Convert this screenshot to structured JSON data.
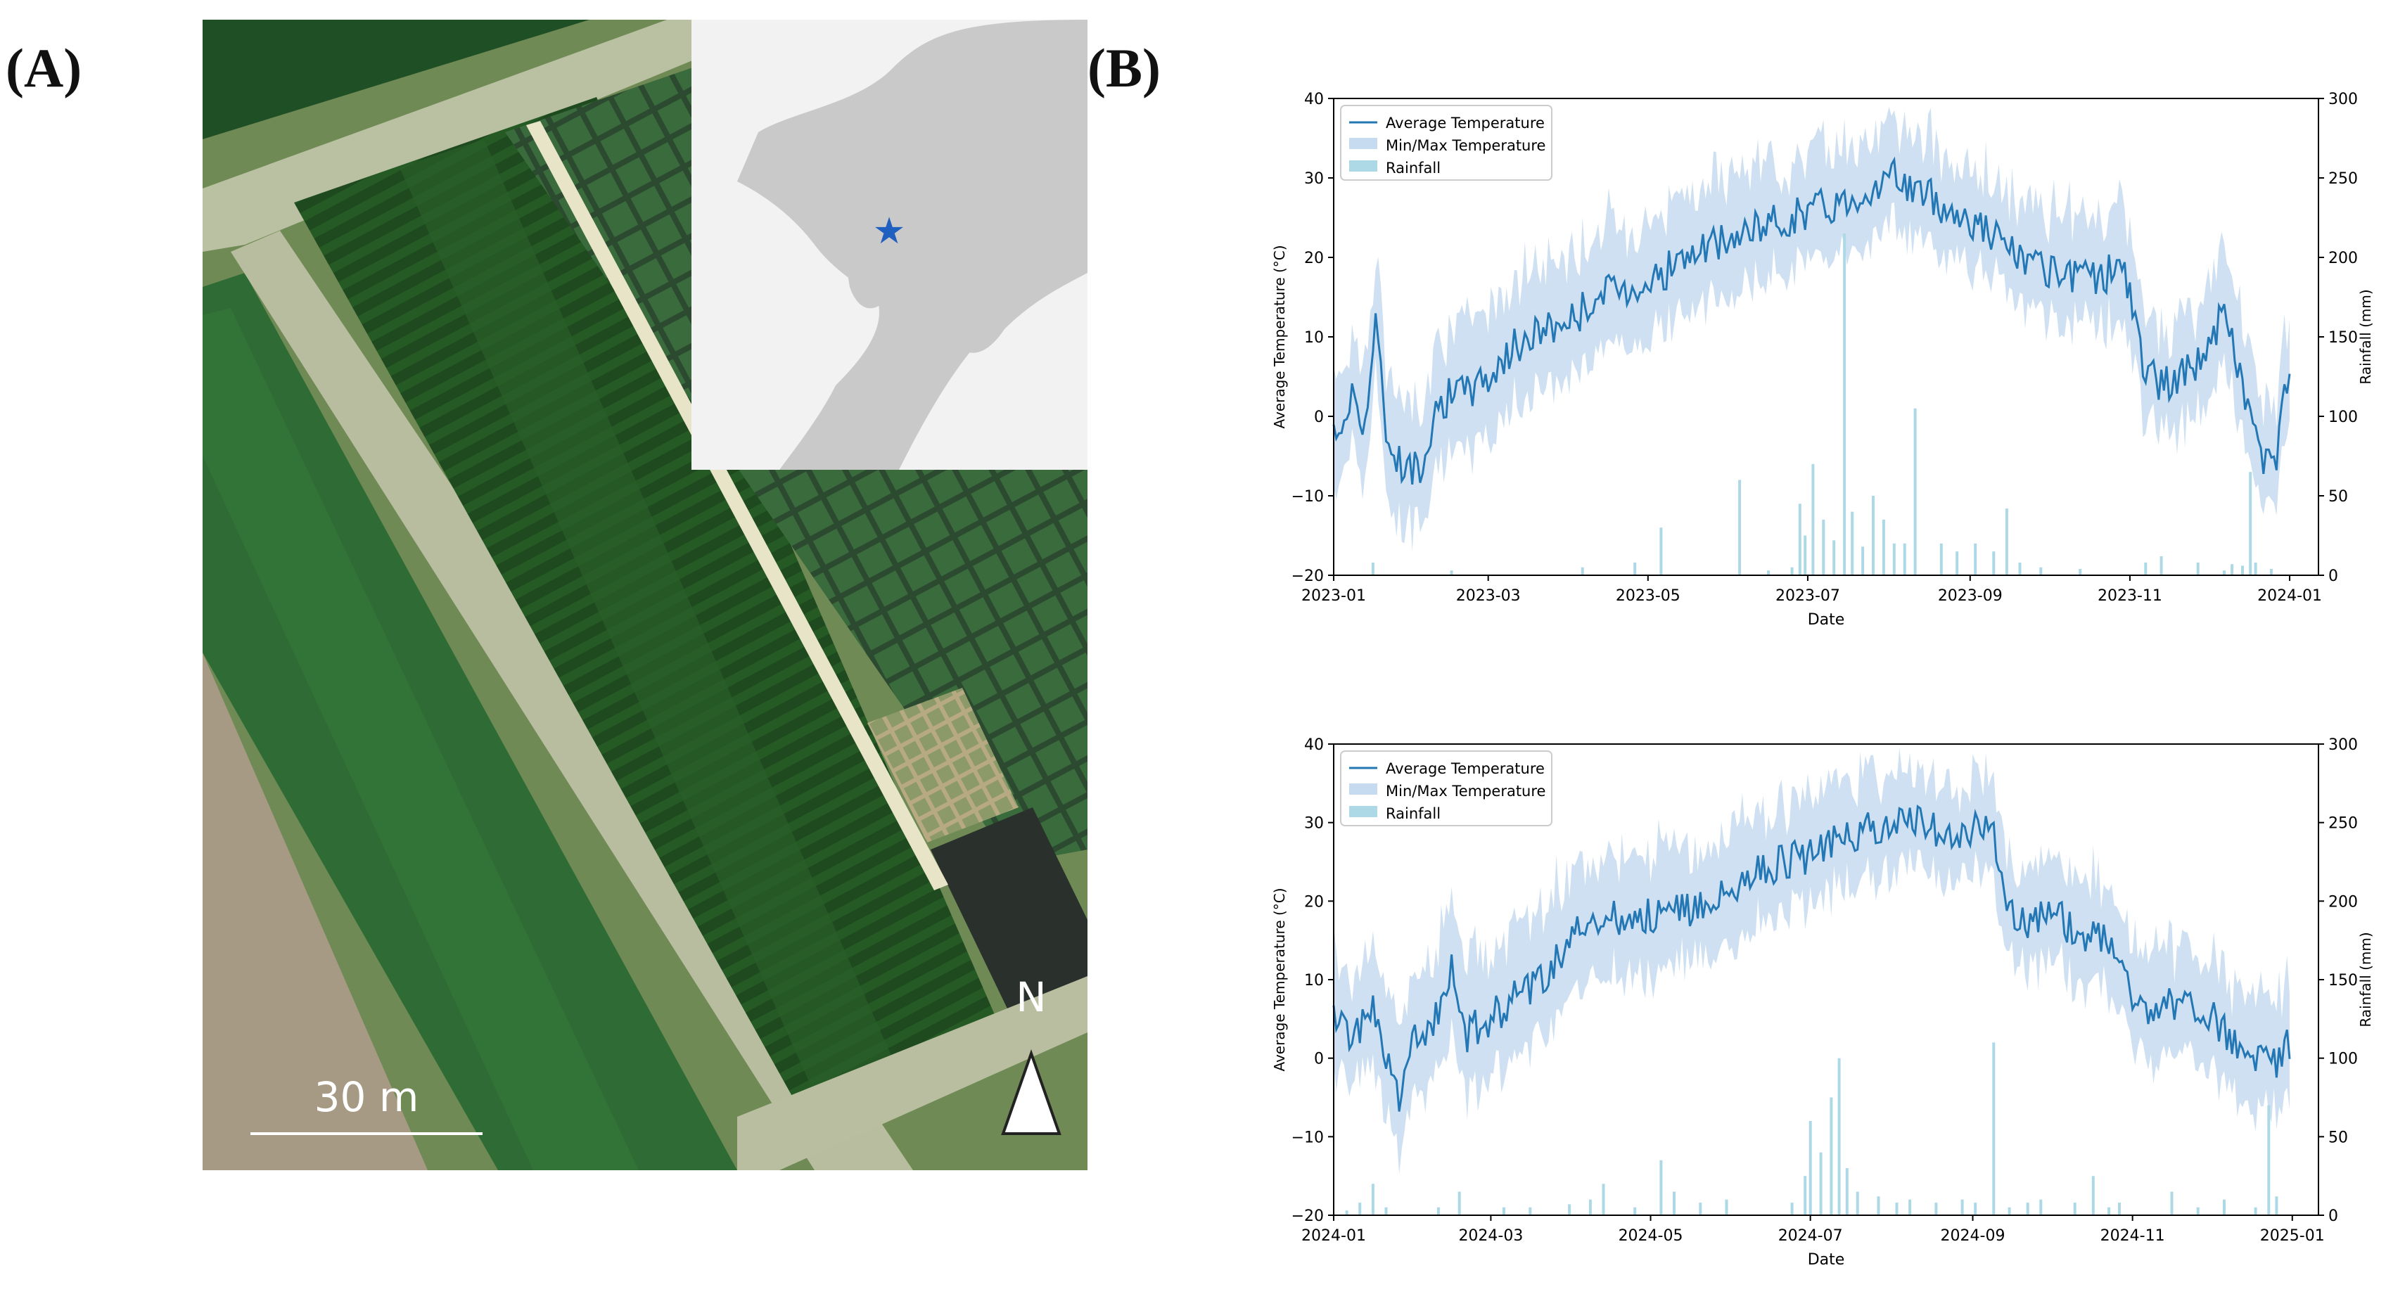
{
  "figure": {
    "panel_a_label": "(A)",
    "panel_b_label": "(B)"
  },
  "map": {
    "scale_bar_label": "30 m",
    "north_label": "N",
    "site_marker": "star-icon"
  },
  "colors": {
    "avg_line": "#2277b4",
    "band": "#c6dbef",
    "rain": "#add8e6",
    "field_dark": "#1f4a1f",
    "field_mid": "#2e6a2e",
    "inset_land": "#c9c9c9",
    "inset_sea": "#f2f2f2",
    "star": "#1f5fbf"
  },
  "chart_data": [
    {
      "type": "line",
      "title": "",
      "xlabel": "Date",
      "ylabel": "Average Temperature (°C)",
      "y2label": "Rainfall (mm)",
      "ylim": [
        -20,
        40
      ],
      "y2lim": [
        0,
        300
      ],
      "yticks": [
        "−20",
        "−10",
        "0",
        "10",
        "20",
        "30",
        "40"
      ],
      "y2ticks": [
        "0",
        "50",
        "100",
        "150",
        "200",
        "250",
        "300"
      ],
      "xlim": [
        0,
        376
      ],
      "xticks": [
        {
          "day": 0,
          "label": "2023-01"
        },
        {
          "day": 59,
          "label": "2023-03"
        },
        {
          "day": 120,
          "label": "2023-05"
        },
        {
          "day": 181,
          "label": "2023-07"
        },
        {
          "day": 243,
          "label": "2023-09"
        },
        {
          "day": 304,
          "label": "2023-11"
        },
        {
          "day": 365,
          "label": "2024-01"
        }
      ],
      "legend": [
        "Average Temperature",
        "Min/Max Temperature",
        "Rainfall"
      ],
      "legend_position": "top-left",
      "avg_temp_anchors": [
        [
          0,
          -3
        ],
        [
          8,
          3
        ],
        [
          12,
          -1
        ],
        [
          16,
          12
        ],
        [
          20,
          -2
        ],
        [
          26,
          -6
        ],
        [
          32,
          -7
        ],
        [
          40,
          2
        ],
        [
          50,
          3
        ],
        [
          59,
          5
        ],
        [
          70,
          9
        ],
        [
          80,
          11
        ],
        [
          90,
          12
        ],
        [
          100,
          15
        ],
        [
          110,
          16
        ],
        [
          120,
          17
        ],
        [
          135,
          20
        ],
        [
          150,
          22
        ],
        [
          165,
          24
        ],
        [
          181,
          26
        ],
        [
          195,
          27
        ],
        [
          205,
          29
        ],
        [
          215,
          30
        ],
        [
          225,
          28
        ],
        [
          235,
          26
        ],
        [
          243,
          25
        ],
        [
          255,
          22
        ],
        [
          265,
          19
        ],
        [
          280,
          17
        ],
        [
          295,
          18
        ],
        [
          300,
          20
        ],
        [
          305,
          14
        ],
        [
          310,
          5
        ],
        [
          320,
          4
        ],
        [
          330,
          7
        ],
        [
          340,
          13
        ],
        [
          348,
          3
        ],
        [
          355,
          -6
        ],
        [
          360,
          -5
        ],
        [
          365,
          6
        ]
      ],
      "spread_anchors": [
        [
          0,
          5
        ],
        [
          60,
          6
        ],
        [
          181,
          5
        ],
        [
          243,
          4
        ],
        [
          304,
          5
        ],
        [
          365,
          5
        ]
      ],
      "rain_events": [
        [
          15,
          8
        ],
        [
          45,
          3
        ],
        [
          95,
          5
        ],
        [
          115,
          8
        ],
        [
          125,
          30
        ],
        [
          155,
          60
        ],
        [
          166,
          3
        ],
        [
          175,
          5
        ],
        [
          178,
          45
        ],
        [
          180,
          25
        ],
        [
          183,
          70
        ],
        [
          187,
          35
        ],
        [
          191,
          22
        ],
        [
          195,
          215
        ],
        [
          198,
          40
        ],
        [
          202,
          18
        ],
        [
          206,
          50
        ],
        [
          210,
          35
        ],
        [
          214,
          20
        ],
        [
          218,
          20
        ],
        [
          222,
          105
        ],
        [
          232,
          20
        ],
        [
          238,
          15
        ],
        [
          245,
          20
        ],
        [
          252,
          15
        ],
        [
          257,
          42
        ],
        [
          262,
          8
        ],
        [
          270,
          5
        ],
        [
          285,
          4
        ],
        [
          310,
          8
        ],
        [
          316,
          12
        ],
        [
          330,
          8
        ],
        [
          340,
          3
        ],
        [
          343,
          7
        ],
        [
          347,
          6
        ],
        [
          350,
          65
        ],
        [
          352,
          8
        ],
        [
          358,
          4
        ]
      ]
    },
    {
      "type": "line",
      "title": "",
      "xlabel": "Date",
      "ylabel": "Average Temperature (°C)",
      "y2label": "Rainfall (mm)",
      "ylim": [
        -20,
        40
      ],
      "y2lim": [
        0,
        300
      ],
      "yticks": [
        "−20",
        "−10",
        "0",
        "10",
        "20",
        "30",
        "40"
      ],
      "y2ticks": [
        "0",
        "50",
        "100",
        "150",
        "200",
        "250",
        "300"
      ],
      "xlim": [
        0,
        376
      ],
      "xticks": [
        {
          "day": 0,
          "label": "2024-01"
        },
        {
          "day": 60,
          "label": "2024-03"
        },
        {
          "day": 121,
          "label": "2024-05"
        },
        {
          "day": 182,
          "label": "2024-07"
        },
        {
          "day": 244,
          "label": "2024-09"
        },
        {
          "day": 305,
          "label": "2024-11"
        },
        {
          "day": 366,
          "label": "2025-01"
        }
      ],
      "legend": [
        "Average Temperature",
        "Min/Max Temperature",
        "Rainfall"
      ],
      "legend_position": "top-left",
      "avg_temp_anchors": [
        [
          0,
          5
        ],
        [
          8,
          2
        ],
        [
          14,
          7
        ],
        [
          20,
          0
        ],
        [
          25,
          -5
        ],
        [
          30,
          2
        ],
        [
          40,
          5
        ],
        [
          45,
          13
        ],
        [
          50,
          3
        ],
        [
          60,
          5
        ],
        [
          70,
          8
        ],
        [
          80,
          10
        ],
        [
          90,
          15
        ],
        [
          100,
          17
        ],
        [
          110,
          18
        ],
        [
          120,
          18
        ],
        [
          135,
          19
        ],
        [
          150,
          21
        ],
        [
          165,
          24
        ],
        [
          182,
          26
        ],
        [
          195,
          28
        ],
        [
          210,
          30
        ],
        [
          225,
          30
        ],
        [
          235,
          28
        ],
        [
          244,
          29
        ],
        [
          252,
          29
        ],
        [
          257,
          20
        ],
        [
          265,
          17
        ],
        [
          275,
          18
        ],
        [
          285,
          16
        ],
        [
          295,
          15
        ],
        [
          300,
          14
        ],
        [
          305,
          8
        ],
        [
          315,
          6
        ],
        [
          325,
          8
        ],
        [
          335,
          5
        ],
        [
          345,
          2
        ],
        [
          355,
          0
        ],
        [
          360,
          -1
        ],
        [
          366,
          3
        ]
      ],
      "spread_anchors": [
        [
          0,
          5
        ],
        [
          60,
          6
        ],
        [
          182,
          5
        ],
        [
          244,
          4
        ],
        [
          305,
          5
        ],
        [
          366,
          5
        ]
      ],
      "rain_events": [
        [
          5,
          3
        ],
        [
          10,
          8
        ],
        [
          15,
          20
        ],
        [
          20,
          5
        ],
        [
          40,
          5
        ],
        [
          48,
          15
        ],
        [
          65,
          5
        ],
        [
          75,
          5
        ],
        [
          90,
          7
        ],
        [
          98,
          10
        ],
        [
          103,
          20
        ],
        [
          115,
          5
        ],
        [
          125,
          35
        ],
        [
          130,
          15
        ],
        [
          140,
          8
        ],
        [
          150,
          10
        ],
        [
          175,
          8
        ],
        [
          180,
          25
        ],
        [
          182,
          60
        ],
        [
          186,
          40
        ],
        [
          190,
          75
        ],
        [
          193,
          100
        ],
        [
          196,
          30
        ],
        [
          200,
          15
        ],
        [
          208,
          12
        ],
        [
          215,
          8
        ],
        [
          220,
          10
        ],
        [
          230,
          8
        ],
        [
          240,
          10
        ],
        [
          245,
          8
        ],
        [
          252,
          110
        ],
        [
          258,
          5
        ],
        [
          265,
          8
        ],
        [
          270,
          10
        ],
        [
          283,
          8
        ],
        [
          290,
          25
        ],
        [
          296,
          5
        ],
        [
          300,
          8
        ],
        [
          320,
          15
        ],
        [
          330,
          5
        ],
        [
          340,
          10
        ],
        [
          352,
          5
        ],
        [
          357,
          70
        ],
        [
          360,
          12
        ]
      ]
    }
  ]
}
